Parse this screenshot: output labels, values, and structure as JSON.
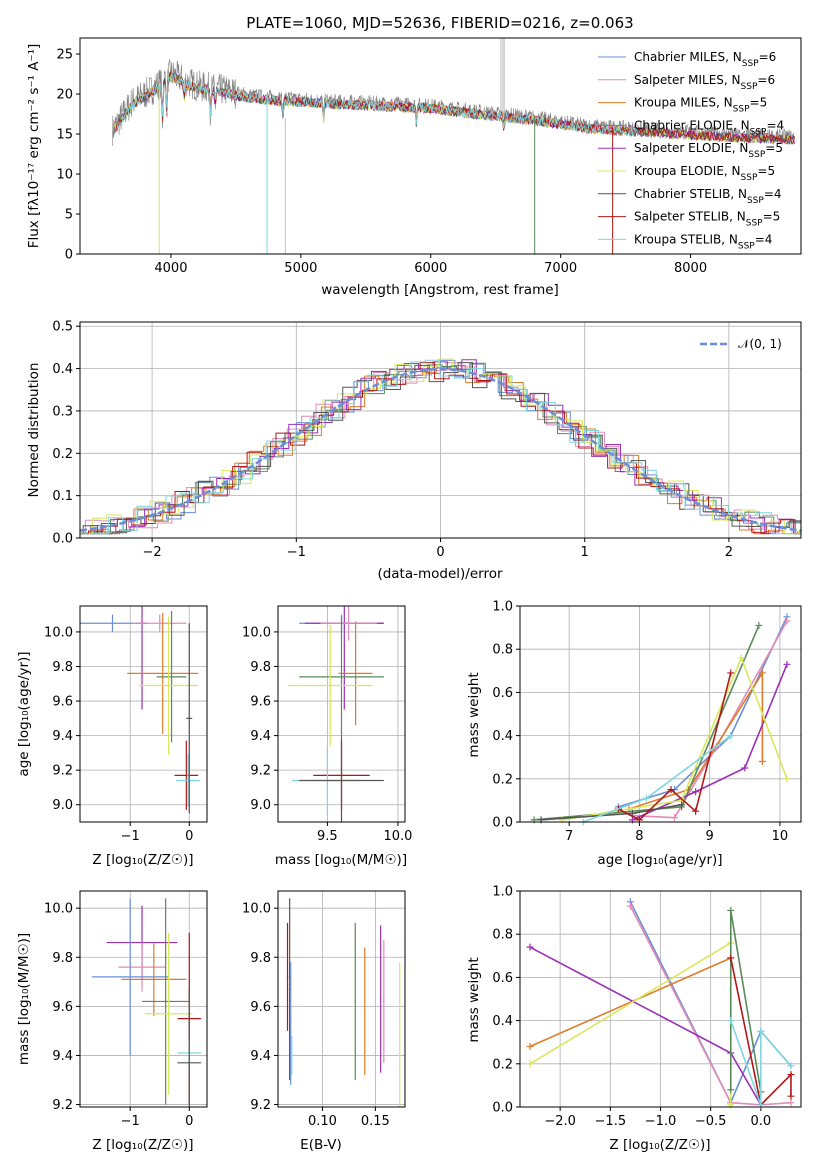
{
  "colors": [
    "#6a8fd8",
    "#e48bb7",
    "#e07b2a",
    "#5a8a5a",
    "#9b30b8",
    "#d8e85a",
    "#555555",
    "#b01818",
    "#7fd6df"
  ],
  "chart_data": [
    {
      "id": "spectrum",
      "type": "line",
      "title": "PLATE=1060, MJD=52636, FIBERID=0216, z=0.063",
      "xlabel": "wavelength [Angstrom, rest frame]",
      "ylabel": "Flux [fλ10⁻¹⁷ erg cm⁻² s⁻¹ A⁻¹]",
      "xlim": [
        3300,
        8850
      ],
      "ylim": [
        0,
        27
      ],
      "xticks": [
        "4000",
        "5000",
        "6000",
        "7000",
        "8000"
      ],
      "yticks": [
        "0",
        "5",
        "10",
        "15",
        "20",
        "25"
      ],
      "grid": false,
      "legend": "top-right",
      "series": [
        {
          "name": "Chabrier MILES, N_SSP=6"
        },
        {
          "name": "Salpeter MILES, N_SSP=6"
        },
        {
          "name": "Kroupa MILES, N_SSP=5"
        },
        {
          "name": "Chabrier ELODIE, N_SSP=4"
        },
        {
          "name": "Salpeter ELODIE, N_SSP=5"
        },
        {
          "name": "Kroupa ELODIE, N_SSP=5"
        },
        {
          "name": "Chabrier STELIB, N_SSP=4"
        },
        {
          "name": "Salpeter STELIB, N_SSP=5"
        },
        {
          "name": "Kroupa STELIB, N_SSP=4"
        }
      ],
      "continuum": {
        "x": [
          3550,
          3700,
          3850,
          4000,
          4200,
          4400,
          4600,
          4800,
          5000,
          5300,
          5600,
          6000,
          6400,
          6800,
          7200,
          7600,
          8000,
          8400,
          8800
        ],
        "y": [
          15.5,
          19,
          20.5,
          22.5,
          21,
          20.5,
          19.8,
          19.5,
          19.3,
          19,
          18.8,
          18.5,
          17.7,
          17,
          16,
          15.6,
          15.2,
          14.8,
          14.6
        ]
      }
    },
    {
      "id": "residuals",
      "type": "line",
      "xlabel": "(data-model)/error",
      "ylabel": "Normed distribution",
      "xlim": [
        -2.5,
        2.5
      ],
      "ylim": [
        0,
        0.51
      ],
      "xticks": [
        "−2",
        "−1",
        "0",
        "1",
        "2"
      ],
      "yticks": [
        "0.0",
        "0.1",
        "0.2",
        "0.3",
        "0.4",
        "0.5"
      ],
      "grid": true,
      "legend": "top-right",
      "legend_label": "𝒩(0, 1)"
    },
    {
      "id": "age-vs-z",
      "type": "scatter",
      "xlabel": "Z [log₁₀(Z/Z☉)]",
      "ylabel": "age  [log₁₀(age/yr)]",
      "xlim": [
        -1.85,
        0.3
      ],
      "ylim": [
        8.9,
        10.15
      ],
      "xticks": [
        "−1",
        "0"
      ],
      "yticks": [
        "9.0",
        "9.2",
        "9.4",
        "9.6",
        "9.8",
        "10.0"
      ],
      "grid": true,
      "points": [
        {
          "x": -1.3,
          "y": 10.05,
          "xerr": 0.55,
          "yerr": 0.05,
          "c": 0
        },
        {
          "x": -0.8,
          "y": 10.05,
          "xerr": 0.1,
          "yerr": 0.5,
          "c": 4
        },
        {
          "x": -0.5,
          "y": 10.05,
          "xerr": 0.45,
          "yerr": 0.05,
          "c": 1
        },
        {
          "x": -0.45,
          "y": 9.76,
          "xerr": 0.6,
          "yerr": 0.35,
          "c": 2
        },
        {
          "x": -0.3,
          "y": 9.74,
          "xerr": 0.25,
          "yerr": 0.38,
          "c": 3
        },
        {
          "x": -0.35,
          "y": 9.69,
          "xerr": 0.5,
          "yerr": 0.4,
          "c": 5
        },
        {
          "x": -0.05,
          "y": 9.17,
          "xerr": 0.2,
          "yerr": 0.2,
          "c": 7
        },
        {
          "x": -0.02,
          "y": 9.14,
          "xerr": 0.2,
          "yerr": 0.15,
          "c": 8
        },
        {
          "x": 0.0,
          "y": 9.5,
          "xerr": 0.05,
          "yerr": 0.55,
          "c": 6
        }
      ]
    },
    {
      "id": "age-vs-mass",
      "type": "scatter",
      "xlabel": "mass [log₁₀(M/M☉)]",
      "ylabel": "",
      "xlim": [
        9.15,
        10.05
      ],
      "ylim": [
        8.9,
        10.15
      ],
      "xticks": [
        "9.5",
        "10.0"
      ],
      "yticks": [
        "9.0",
        "9.2",
        "9.4",
        "9.6",
        "9.8",
        "10.0"
      ],
      "grid": true,
      "points": [
        {
          "x": 9.6,
          "y": 10.05,
          "xerr": 0.3,
          "yerr": 0.05,
          "c": 0
        },
        {
          "x": 9.62,
          "y": 10.05,
          "xerr": 0.28,
          "yerr": 0.5,
          "c": 4
        },
        {
          "x": 9.65,
          "y": 10.05,
          "xerr": 0.2,
          "yerr": 0.1,
          "c": 1
        },
        {
          "x": 9.7,
          "y": 9.76,
          "xerr": 0.12,
          "yerr": 0.3,
          "c": 2
        },
        {
          "x": 9.6,
          "y": 9.74,
          "xerr": 0.3,
          "yerr": 0.35,
          "c": 3
        },
        {
          "x": 9.52,
          "y": 9.69,
          "xerr": 0.3,
          "yerr": 0.35,
          "c": 5
        },
        {
          "x": 9.6,
          "y": 9.17,
          "xerr": 0.2,
          "yerr": 0.2,
          "c": 7
        },
        {
          "x": 9.5,
          "y": 9.14,
          "xerr": 0.25,
          "yerr": 0.2,
          "c": 8
        },
        {
          "x": 9.6,
          "y": 9.14,
          "xerr": 0.3,
          "yerr": 0.25,
          "c": 6
        }
      ]
    },
    {
      "id": "massweight-vs-age",
      "type": "line",
      "xlabel": "age  [log₁₀(age/yr)]",
      "ylabel": "mass weight",
      "xlim": [
        6.3,
        10.3
      ],
      "ylim": [
        0,
        1.0
      ],
      "xticks": [
        "7",
        "8",
        "9",
        "10"
      ],
      "yticks": [
        "0.0",
        "0.2",
        "0.4",
        "0.6",
        "0.8",
        "1.0"
      ],
      "grid": true,
      "series": [
        {
          "c": 0,
          "x": [
            7.7,
            8.5,
            9.3,
            10.1
          ],
          "y": [
            0.07,
            0.15,
            0.4,
            0.95
          ]
        },
        {
          "c": 1,
          "x": [
            7.9,
            8.5,
            9.1,
            10.1
          ],
          "y": [
            0.03,
            0.02,
            0.35,
            0.93
          ]
        },
        {
          "c": 2,
          "x": [
            7.85,
            8.7,
            9.75,
            9.75
          ],
          "y": [
            0.06,
            0.15,
            0.69,
            0.28
          ]
        },
        {
          "c": 3,
          "x": [
            6.5,
            8.6,
            9.7
          ],
          "y": [
            0.01,
            0.07,
            0.91
          ]
        },
        {
          "c": 4,
          "x": [
            7.9,
            8.8,
            9.5,
            10.1
          ],
          "y": [
            0.01,
            0.14,
            0.25,
            0.73
          ]
        },
        {
          "c": 5,
          "x": [
            6.9,
            8.6,
            9.45,
            10.1
          ],
          "y": [
            0.01,
            0.1,
            0.76,
            0.2
          ]
        },
        {
          "c": 6,
          "x": [
            6.6,
            7.9,
            8.6
          ],
          "y": [
            0.01,
            0.04,
            0.08
          ]
        },
        {
          "c": 7,
          "x": [
            7.7,
            8.0,
            8.45,
            8.8,
            9.3
          ],
          "y": [
            0.06,
            0.01,
            0.15,
            0.05,
            0.69
          ]
        },
        {
          "c": 8,
          "x": [
            7.2,
            8.1,
            9.3
          ],
          "y": [
            0.0,
            0.11,
            0.4
          ]
        }
      ]
    },
    {
      "id": "mass-vs-z",
      "type": "scatter",
      "xlabel": "Z [log₁₀(Z/Z☉)]",
      "ylabel": "mass [log₁₀(M/M☉)]",
      "xlim": [
        -1.85,
        0.3
      ],
      "ylim": [
        9.19,
        10.07
      ],
      "xticks": [
        "−1",
        "0"
      ],
      "yticks": [
        "9.2",
        "9.4",
        "9.6",
        "9.8",
        "10.0"
      ],
      "grid": true,
      "points": [
        {
          "x": -0.8,
          "y": 9.86,
          "xerr": 0.6,
          "yerr": 0.15,
          "c": 4
        },
        {
          "x": -0.8,
          "y": 9.76,
          "xerr": 0.4,
          "yerr": 0.1,
          "c": 1
        },
        {
          "x": -1.0,
          "y": 9.72,
          "xerr": 0.65,
          "yerr": 0.32,
          "c": 0
        },
        {
          "x": -0.6,
          "y": 9.71,
          "xerr": 0.55,
          "yerr": 0.15,
          "c": 2
        },
        {
          "x": -0.4,
          "y": 9.62,
          "xerr": 0.4,
          "yerr": 0.42,
          "c": 3
        },
        {
          "x": -0.35,
          "y": 9.57,
          "xerr": 0.4,
          "yerr": 0.33,
          "c": 5
        },
        {
          "x": 0.0,
          "y": 9.55,
          "xerr": 0.2,
          "yerr": 0.35,
          "c": 7
        },
        {
          "x": 0.0,
          "y": 9.41,
          "xerr": 0.2,
          "yerr": 0.05,
          "c": 8
        },
        {
          "x": 0.0,
          "y": 9.37,
          "xerr": 0.2,
          "yerr": 0.3,
          "c": 6
        }
      ]
    },
    {
      "id": "mass-vs-ebv",
      "type": "scatter",
      "xlabel": "E(B-V)",
      "ylabel": "",
      "xlim": [
        0.058,
        0.178
      ],
      "ylim": [
        9.19,
        10.07
      ],
      "xticks": [
        "0.10",
        "0.15"
      ],
      "yticks": [
        "9.2",
        "9.4",
        "9.6",
        "9.8",
        "10.0"
      ],
      "grid": true,
      "points": [
        {
          "x": 0.067,
          "y": 9.72,
          "xerr": 0,
          "yerr": 0.22,
          "c": 7
        },
        {
          "x": 0.069,
          "y": 9.67,
          "xerr": 0,
          "yerr": 0.37,
          "c": 6
        },
        {
          "x": 0.07,
          "y": 9.53,
          "xerr": 0,
          "yerr": 0.25,
          "c": 0
        },
        {
          "x": 0.071,
          "y": 9.4,
          "xerr": 0,
          "yerr": 0.08,
          "c": 8
        },
        {
          "x": 0.131,
          "y": 9.62,
          "xerr": 0,
          "yerr": 0.32,
          "c": 3
        },
        {
          "x": 0.14,
          "y": 9.58,
          "xerr": 0,
          "yerr": 0.26,
          "c": 2
        },
        {
          "x": 0.155,
          "y": 9.63,
          "xerr": 0,
          "yerr": 0.3,
          "c": 4
        },
        {
          "x": 0.158,
          "y": 9.62,
          "xerr": 0,
          "yerr": 0.25,
          "c": 1
        },
        {
          "x": 0.173,
          "y": 9.48,
          "xerr": 0,
          "yerr": 0.3,
          "c": 5
        }
      ]
    },
    {
      "id": "massweight-vs-z",
      "type": "line",
      "xlabel": "Z [log₁₀(Z/Z☉)]",
      "ylabel": "mass weight",
      "xlim": [
        -2.4,
        0.4
      ],
      "ylim": [
        0,
        1.0
      ],
      "xticks": [
        "−2.0",
        "−1.5",
        "−1.0",
        "−0.5",
        "0.0"
      ],
      "yticks": [
        "0.0",
        "0.2",
        "0.4",
        "0.6",
        "0.8",
        "1.0"
      ],
      "grid": true,
      "series": [
        {
          "c": 0,
          "x": [
            -1.3,
            -0.3,
            0.0,
            0.3
          ],
          "y": [
            0.95,
            0.02,
            0.35,
            0.19
          ]
        },
        {
          "c": 1,
          "x": [
            -1.3,
            -0.3,
            0.0,
            0.3
          ],
          "y": [
            0.93,
            0.02,
            0.01,
            0.02
          ]
        },
        {
          "c": 2,
          "x": [
            -2.3,
            -0.3
          ],
          "y": [
            0.28,
            0.69
          ]
        },
        {
          "c": 4,
          "x": [
            -2.3,
            -0.3,
            0.0
          ],
          "y": [
            0.74,
            0.25,
            0.01
          ]
        },
        {
          "c": 5,
          "x": [
            -2.3,
            -0.3,
            -0.3
          ],
          "y": [
            0.2,
            0.76,
            0.01
          ]
        },
        {
          "c": 3,
          "x": [
            -0.3,
            -0.3,
            0.0
          ],
          "y": [
            0.08,
            0.91,
            0.07
          ]
        },
        {
          "c": 7,
          "x": [
            -0.3,
            0.0,
            0.3,
            0.3
          ],
          "y": [
            0.69,
            0.01,
            0.15,
            0.05
          ]
        },
        {
          "c": 8,
          "x": [
            -0.3,
            0.0,
            0.0,
            0.3
          ],
          "y": [
            0.4,
            0.01,
            0.35,
            0.19
          ]
        }
      ]
    }
  ]
}
